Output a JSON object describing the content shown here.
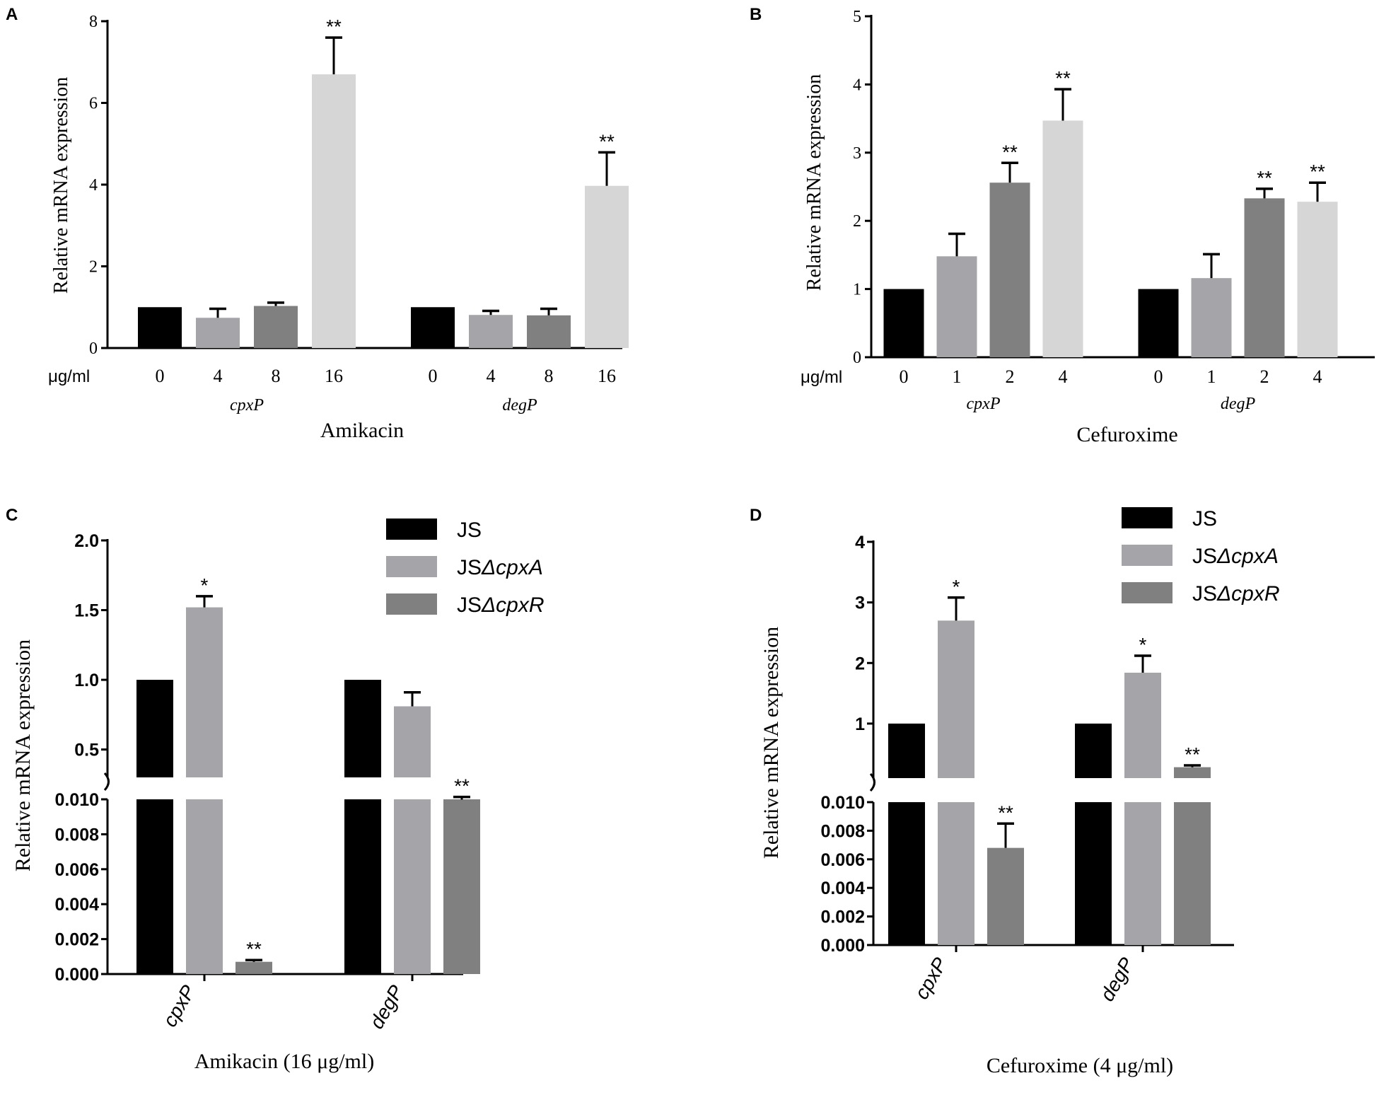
{
  "colors": {
    "black": "#000000",
    "gray_light": "#a5a5a9",
    "gray_dark": "#808080",
    "gray_pale": "#d6d6d6"
  },
  "chart_data": [
    {
      "panel": "A",
      "type": "bar",
      "ylabel": "Relative mRNA expression",
      "xlabel": "Amikacin",
      "unit_label": "μg/ml",
      "ylim": [
        0,
        8
      ],
      "yticks": [
        "0",
        "2",
        "4",
        "6",
        "8"
      ],
      "groups": [
        {
          "label": "cpxP",
          "categories": [
            "0",
            "4",
            "8",
            "16"
          ],
          "values": [
            1.0,
            0.74,
            1.03,
            6.7
          ],
          "errors": [
            0,
            0.22,
            0.08,
            0.9
          ],
          "stars": [
            "",
            "",
            "",
            "**"
          ],
          "colors": [
            "black",
            "gray_light",
            "gray_dark",
            "gray_pale"
          ]
        },
        {
          "label": "degP",
          "categories": [
            "0",
            "4",
            "8",
            "16"
          ],
          "values": [
            1.0,
            0.81,
            0.8,
            3.97
          ],
          "errors": [
            0,
            0.1,
            0.16,
            0.82
          ],
          "stars": [
            "",
            "",
            "",
            "**"
          ],
          "colors": [
            "black",
            "gray_light",
            "gray_dark",
            "gray_pale"
          ]
        }
      ]
    },
    {
      "panel": "B",
      "type": "bar",
      "ylabel": "Relative mRNA expression",
      "xlabel": "Cefuroxime",
      "unit_label": "μg/ml",
      "ylim": [
        0,
        5
      ],
      "yticks": [
        "0",
        "1",
        "2",
        "3",
        "4",
        "5"
      ],
      "groups": [
        {
          "label": "cpxP",
          "categories": [
            "0",
            "1",
            "2",
            "4"
          ],
          "values": [
            1.0,
            1.48,
            2.56,
            3.47
          ],
          "errors": [
            0,
            0.33,
            0.29,
            0.46
          ],
          "stars": [
            "",
            "",
            "**",
            "**"
          ],
          "colors": [
            "black",
            "gray_light",
            "gray_dark",
            "gray_pale"
          ]
        },
        {
          "label": "degP",
          "categories": [
            "0",
            "1",
            "2",
            "4"
          ],
          "values": [
            1.0,
            1.16,
            2.33,
            2.28
          ],
          "errors": [
            0,
            0.35,
            0.14,
            0.28
          ],
          "stars": [
            "",
            "",
            "**",
            "**"
          ],
          "colors": [
            "black",
            "gray_light",
            "gray_dark",
            "gray_pale"
          ]
        }
      ]
    },
    {
      "panel": "C",
      "type": "bar",
      "broken_axis": true,
      "ylabel": "Relative mRNA expression",
      "xlabel": "Amikacin (16 μg/ml)",
      "upper_ylim": [
        0.3,
        2.0
      ],
      "upper_yticks": [
        "0.5",
        "1.0",
        "1.5",
        "2.0"
      ],
      "lower_ylim": [
        0,
        0.01
      ],
      "lower_yticks": [
        "0.000",
        "0.002",
        "0.004",
        "0.006",
        "0.008",
        "0.010"
      ],
      "legend": [
        "JS",
        "JSΔcpxA",
        "JSΔcpxR"
      ],
      "categories": [
        "cpxP",
        "degP"
      ],
      "series": [
        {
          "name": "JS",
          "color": "black",
          "values": [
            1.0,
            1.0
          ],
          "errors": [
            0,
            0
          ],
          "stars": [
            "",
            ""
          ]
        },
        {
          "name": "JSΔcpxA",
          "color": "gray_light",
          "values": [
            1.52,
            0.81
          ],
          "errors": [
            0.08,
            0.1
          ],
          "stars": [
            "*",
            ""
          ]
        },
        {
          "name": "JSΔcpxR",
          "color": "gray_dark",
          "values": [
            0.0007,
            0.14
          ],
          "errors": [
            0.0001,
            0.02
          ],
          "stars": [
            "**",
            "**"
          ]
        }
      ]
    },
    {
      "panel": "D",
      "type": "bar",
      "broken_axis": true,
      "ylabel": "Relative mRNA expression",
      "xlabel": "Cefuroxime (4 μg/ml)",
      "upper_ylim": [
        0.1,
        4
      ],
      "upper_yticks": [
        "1",
        "2",
        "3",
        "4"
      ],
      "lower_ylim": [
        0,
        0.01
      ],
      "lower_yticks": [
        "0.000",
        "0.002",
        "0.004",
        "0.006",
        "0.008",
        "0.010"
      ],
      "legend": [
        "JS",
        "JSΔcpxA",
        "JSΔcpxR"
      ],
      "categories": [
        "cpxP",
        "degP"
      ],
      "series": [
        {
          "name": "JS",
          "color": "black",
          "values": [
            1.0,
            1.0
          ],
          "errors": [
            0,
            0
          ],
          "stars": [
            "",
            ""
          ]
        },
        {
          "name": "JSΔcpxA",
          "color": "gray_light",
          "values": [
            2.7,
            1.84
          ],
          "errors": [
            0.38,
            0.28
          ],
          "stars": [
            "*",
            "*"
          ]
        },
        {
          "name": "JSΔcpxR",
          "color": "gray_dark",
          "values": [
            0.0068,
            0.28
          ],
          "errors": [
            0.0017,
            0.03
          ],
          "stars": [
            "**",
            "**"
          ]
        }
      ]
    }
  ]
}
